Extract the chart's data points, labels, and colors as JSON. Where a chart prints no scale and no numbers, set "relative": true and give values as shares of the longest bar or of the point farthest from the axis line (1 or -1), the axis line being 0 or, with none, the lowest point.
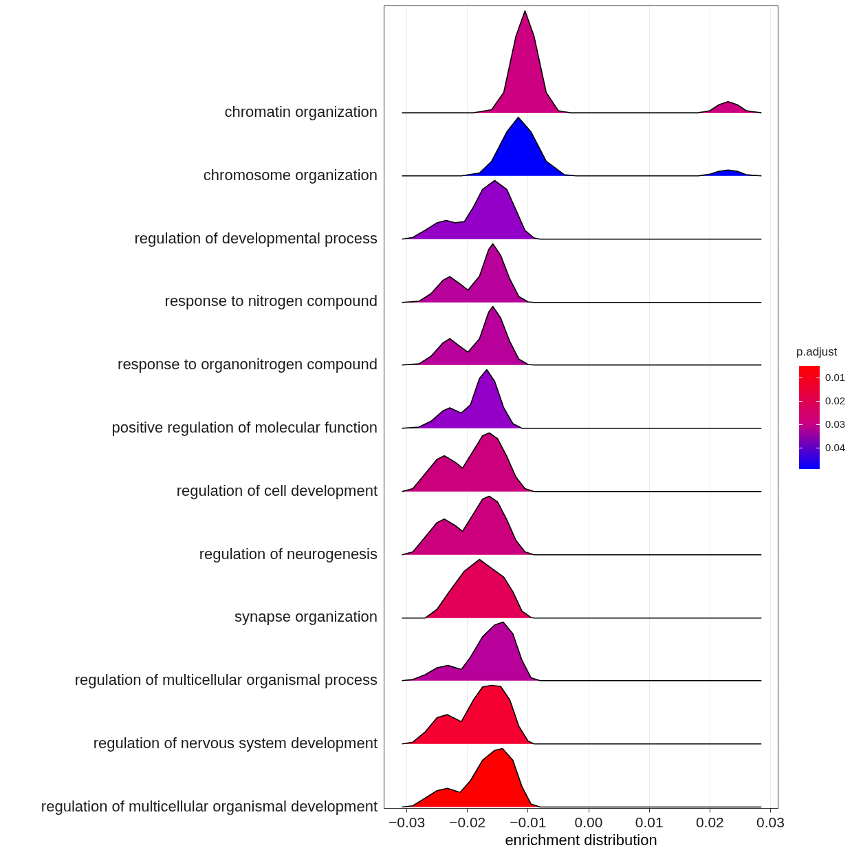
{
  "chart_data": [
    {
      "type": "area",
      "relative": true,
      "ylabel": "chromatin organization",
      "color": "#cc0080",
      "grid": "x",
      "tick_labels": false,
      "xlim": [
        -0.0338,
        0.0313
      ],
      "xticks": [
        -0.03,
        -0.02,
        -0.01,
        0,
        0.01,
        0.02,
        0.03
      ],
      "clabel": "p.adjust",
      "clim": [
        0.005,
        0.049
      ],
      "cticks": [
        0.01,
        0.02,
        0.03,
        0.04
      ],
      "x": [
        -0.0308,
        -0.019,
        -0.016,
        -0.014,
        -0.012,
        -0.0105,
        -0.009,
        -0.007,
        -0.005,
        -0.003,
        0.018,
        0.02,
        0.0215,
        0.023,
        0.0245,
        0.026,
        0.0285
      ],
      "values": [
        0,
        0,
        0.03,
        0.2,
        0.75,
        1,
        0.75,
        0.2,
        0.02,
        0,
        0,
        0.02,
        0.08,
        0.11,
        0.08,
        0.02,
        0
      ]
    },
    {
      "type": "area",
      "relative": true,
      "ylabel": "chromosome organization",
      "color": "#0000ff",
      "grid": "x",
      "tick_labels": false,
      "xlim": [
        -0.0338,
        0.0313
      ],
      "x": [
        -0.0308,
        -0.021,
        -0.018,
        -0.016,
        -0.0135,
        -0.0116,
        -0.0095,
        -0.007,
        -0.004,
        -0.002,
        0.018,
        0.02,
        0.0215,
        0.023,
        0.0245,
        0.026,
        0.0285
      ],
      "values": [
        0,
        0,
        0.05,
        0.25,
        0.75,
        1,
        0.75,
        0.25,
        0.02,
        0,
        0,
        0.03,
        0.08,
        0.1,
        0.08,
        0.02,
        0
      ]
    },
    {
      "type": "area",
      "relative": true,
      "ylabel": "regulation of developmental process",
      "color": "#9400c8",
      "grid": "x",
      "tick_labels": false,
      "xlim": [
        -0.0338,
        0.0313
      ],
      "x": [
        -0.0308,
        -0.029,
        -0.027,
        -0.025,
        -0.0235,
        -0.022,
        -0.0205,
        -0.019,
        -0.0175,
        -0.0155,
        -0.0135,
        -0.012,
        -0.0105,
        -0.009,
        -0.008,
        0.0285
      ],
      "values": [
        0,
        0.03,
        0.15,
        0.28,
        0.32,
        0.28,
        0.3,
        0.55,
        0.85,
        1,
        0.85,
        0.5,
        0.15,
        0.02,
        0,
        0
      ]
    },
    {
      "type": "area",
      "relative": true,
      "ylabel": "response to nitrogen compound",
      "color": "#b8009a",
      "grid": "x",
      "tick_labels": false,
      "xlim": [
        -0.0338,
        0.0313
      ],
      "x": [
        -0.0308,
        -0.028,
        -0.026,
        -0.024,
        -0.0229,
        -0.021,
        -0.0199,
        -0.018,
        -0.0165,
        -0.0158,
        -0.0145,
        -0.013,
        -0.0115,
        -0.01,
        -0.009,
        0.0285
      ],
      "values": [
        0,
        0.02,
        0.15,
        0.38,
        0.44,
        0.3,
        0.21,
        0.45,
        0.9,
        1,
        0.8,
        0.4,
        0.1,
        0.01,
        0,
        0
      ]
    },
    {
      "type": "area",
      "relative": true,
      "ylabel": "response to organonitrogen compound",
      "color": "#b8009a",
      "grid": "x",
      "tick_labels": false,
      "xlim": [
        -0.0338,
        0.0313
      ],
      "x": [
        -0.0308,
        -0.028,
        -0.026,
        -0.024,
        -0.0229,
        -0.021,
        -0.0199,
        -0.018,
        -0.0165,
        -0.0158,
        -0.0145,
        -0.013,
        -0.0115,
        -0.01,
        -0.009,
        0.0285
      ],
      "values": [
        0,
        0.02,
        0.15,
        0.38,
        0.45,
        0.3,
        0.22,
        0.45,
        0.9,
        1,
        0.8,
        0.4,
        0.1,
        0.01,
        0,
        0
      ]
    },
    {
      "type": "area",
      "relative": true,
      "ylabel": "positive regulation of molecular function",
      "color": "#9400c8",
      "grid": "x",
      "tick_labels": false,
      "xlim": [
        -0.0338,
        0.0313
      ],
      "x": [
        -0.0308,
        -0.028,
        -0.026,
        -0.024,
        -0.0229,
        -0.021,
        -0.0195,
        -0.018,
        -0.0168,
        -0.0155,
        -0.014,
        -0.0125,
        -0.011,
        0.0285
      ],
      "values": [
        0,
        0.02,
        0.12,
        0.3,
        0.35,
        0.26,
        0.4,
        0.85,
        1,
        0.8,
        0.35,
        0.08,
        0,
        0
      ]
    },
    {
      "type": "area",
      "relative": true,
      "ylabel": "regulation of cell development",
      "color": "#cc007c",
      "grid": "x",
      "tick_labels": false,
      "xlim": [
        -0.0338,
        0.0313
      ],
      "x": [
        -0.0308,
        -0.029,
        -0.027,
        -0.025,
        -0.0238,
        -0.022,
        -0.0208,
        -0.019,
        -0.0175,
        -0.0164,
        -0.015,
        -0.0135,
        -0.012,
        -0.0105,
        -0.009,
        0.0285
      ],
      "values": [
        0,
        0.05,
        0.3,
        0.55,
        0.61,
        0.5,
        0.4,
        0.7,
        0.95,
        1,
        0.9,
        0.6,
        0.25,
        0.05,
        0,
        0
      ]
    },
    {
      "type": "area",
      "relative": true,
      "ylabel": "regulation of neurogenesis",
      "color": "#cc007c",
      "grid": "x",
      "tick_labels": false,
      "xlim": [
        -0.0338,
        0.0313
      ],
      "x": [
        -0.0308,
        -0.029,
        -0.027,
        -0.025,
        -0.0238,
        -0.022,
        -0.0208,
        -0.019,
        -0.0175,
        -0.0164,
        -0.015,
        -0.0135,
        -0.012,
        -0.0105,
        -0.009,
        0.0285
      ],
      "values": [
        0,
        0.05,
        0.3,
        0.55,
        0.61,
        0.5,
        0.4,
        0.7,
        0.95,
        1,
        0.9,
        0.6,
        0.25,
        0.05,
        0,
        0
      ]
    },
    {
      "type": "area",
      "relative": true,
      "ylabel": "synapse organization",
      "color": "#e20058",
      "grid": "x",
      "tick_labels": false,
      "xlim": [
        -0.0338,
        0.0313
      ],
      "x": [
        -0.0308,
        -0.027,
        -0.025,
        -0.023,
        -0.0205,
        -0.018,
        -0.016,
        -0.014,
        -0.0125,
        -0.011,
        -0.0095,
        -0.009,
        0.0285
      ],
      "values": [
        0,
        0,
        0.15,
        0.45,
        0.8,
        1,
        0.85,
        0.7,
        0.45,
        0.12,
        0.01,
        0,
        0
      ]
    },
    {
      "type": "area",
      "relative": true,
      "ylabel": "regulation of multicellular organismal process",
      "color": "#b8009a",
      "grid": "x",
      "tick_labels": false,
      "xlim": [
        -0.0338,
        0.0313
      ],
      "x": [
        -0.0308,
        -0.029,
        -0.027,
        -0.025,
        -0.0232,
        -0.021,
        -0.0195,
        -0.0175,
        -0.0155,
        -0.0141,
        -0.0125,
        -0.011,
        -0.0095,
        -0.008,
        0.0285
      ],
      "values": [
        0,
        0.02,
        0.1,
        0.22,
        0.26,
        0.19,
        0.4,
        0.75,
        0.95,
        1,
        0.8,
        0.35,
        0.05,
        0,
        0
      ]
    },
    {
      "type": "area",
      "relative": true,
      "ylabel": "regulation of nervous system development",
      "color": "#f50030",
      "grid": "x",
      "tick_labels": false,
      "xlim": [
        -0.0338,
        0.0313
      ],
      "x": [
        -0.0308,
        -0.029,
        -0.027,
        -0.025,
        -0.0233,
        -0.021,
        -0.019,
        -0.0175,
        -0.016,
        -0.0145,
        -0.013,
        -0.0115,
        -0.01,
        -0.009,
        0.0285
      ],
      "values": [
        0,
        0.03,
        0.2,
        0.45,
        0.5,
        0.38,
        0.75,
        0.97,
        1,
        0.98,
        0.75,
        0.3,
        0.05,
        0,
        0
      ]
    },
    {
      "type": "area",
      "relative": true,
      "ylabel": "regulation of multicellular organismal development",
      "color": "#ff0000",
      "grid": "x",
      "tick_labels": "x",
      "xlabel": "enrichment distribution",
      "xlim": [
        -0.0338,
        0.0313
      ],
      "xticks": [
        {
          "value": -0.03,
          "label": "−0.03"
        },
        {
          "value": -0.02,
          "label": "−0.02"
        },
        {
          "value": -0.01,
          "label": "−0.01"
        },
        {
          "value": 0,
          "label": "0.00"
        },
        {
          "value": 0.01,
          "label": "0.01"
        },
        {
          "value": 0.02,
          "label": "0.02"
        },
        {
          "value": 0.03,
          "label": "0.03"
        }
      ],
      "x": [
        -0.0308,
        -0.029,
        -0.027,
        -0.025,
        -0.0233,
        -0.0212,
        -0.0195,
        -0.0175,
        -0.0155,
        -0.0142,
        -0.0125,
        -0.011,
        -0.0095,
        -0.008,
        0.0285
      ],
      "values": [
        0,
        0.02,
        0.15,
        0.28,
        0.32,
        0.25,
        0.45,
        0.8,
        0.97,
        1,
        0.8,
        0.35,
        0.05,
        0,
        0
      ]
    }
  ]
}
